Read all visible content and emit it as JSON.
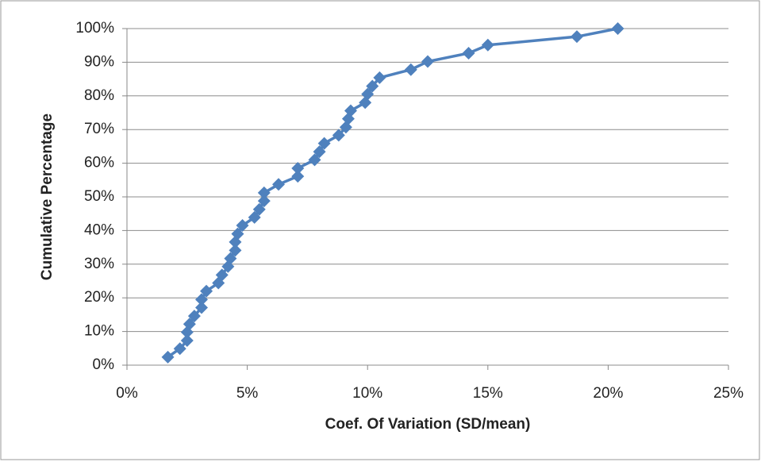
{
  "chart_data": {
    "type": "line",
    "x_label": "Coef. Of Variation (SD/mean)",
    "y_label": "Cumulative Percentage",
    "x": [
      1.7,
      2.2,
      2.5,
      2.5,
      2.6,
      2.8,
      3.1,
      3.1,
      3.3,
      3.8,
      3.95,
      4.2,
      4.3,
      4.5,
      4.5,
      4.6,
      4.8,
      5.3,
      5.5,
      5.7,
      5.7,
      6.3,
      7.1,
      7.1,
      7.8,
      8.0,
      8.2,
      8.8,
      9.1,
      9.2,
      9.3,
      9.9,
      10.0,
      10.2,
      10.5,
      11.8,
      12.5,
      14.2,
      15.0,
      18.7,
      20.4
    ],
    "values": [
      2.4,
      4.9,
      7.3,
      9.8,
      12.2,
      14.6,
      17.1,
      19.5,
      22.0,
      24.4,
      26.8,
      29.3,
      31.7,
      34.1,
      36.6,
      39.0,
      41.5,
      43.9,
      46.3,
      48.8,
      51.2,
      53.7,
      56.1,
      58.5,
      61.0,
      63.4,
      65.9,
      68.3,
      70.7,
      73.2,
      75.6,
      78.0,
      80.5,
      82.9,
      85.4,
      87.8,
      90.2,
      92.7,
      95.1,
      97.6,
      100
    ],
    "color": "#4f81bd",
    "xlim": [
      0,
      25
    ],
    "xticks": [
      {
        "value": 0,
        "label": "0%"
      },
      {
        "value": 5,
        "label": "5%"
      },
      {
        "value": 10,
        "label": "10%"
      },
      {
        "value": 15,
        "label": "15%"
      },
      {
        "value": 20,
        "label": "20%"
      },
      {
        "value": 25,
        "label": "25%"
      }
    ],
    "ylim": [
      0,
      100
    ],
    "yticks": [
      {
        "value": 0,
        "label": "0%"
      },
      {
        "value": 10,
        "label": "10%"
      },
      {
        "value": 20,
        "label": "20%"
      },
      {
        "value": 30,
        "label": "30%"
      },
      {
        "value": 40,
        "label": "40%"
      },
      {
        "value": 50,
        "label": "50%"
      },
      {
        "value": 60,
        "label": "60%"
      },
      {
        "value": 70,
        "label": "70%"
      },
      {
        "value": 80,
        "label": "80%"
      },
      {
        "value": 90,
        "label": "90%"
      },
      {
        "value": 100,
        "label": "100%"
      }
    ],
    "grid": true
  }
}
